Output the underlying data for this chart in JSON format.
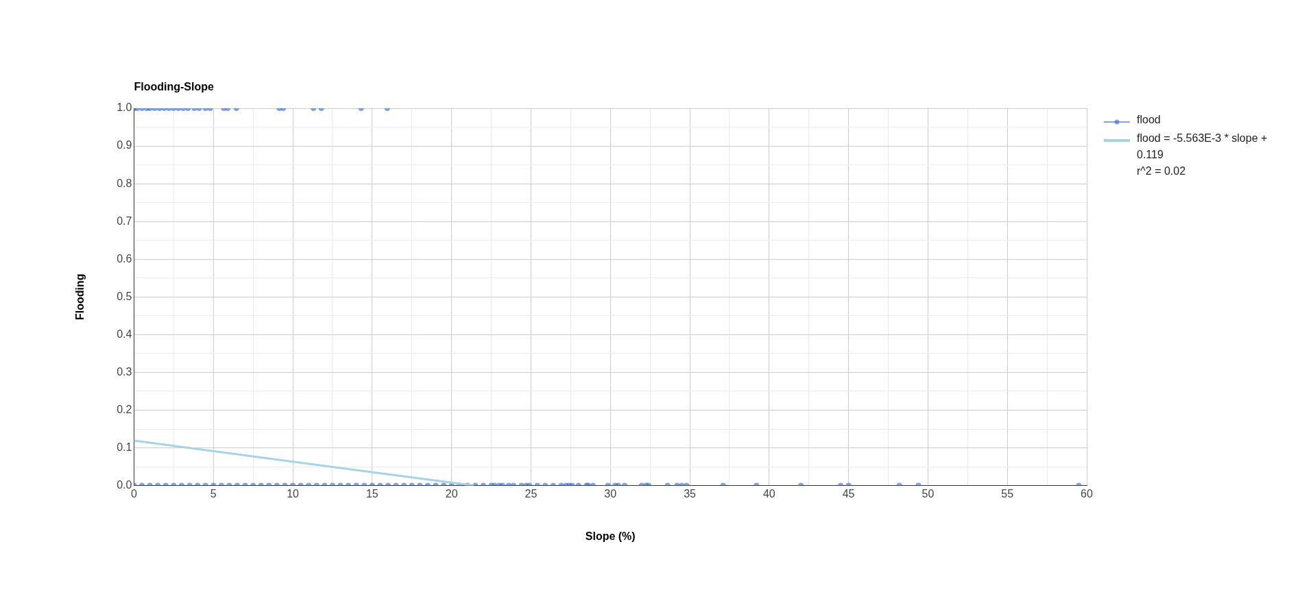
{
  "chart_data": {
    "type": "scatter",
    "title": "Flooding-Slope",
    "xlabel": "Slope (%)",
    "ylabel": "Flooding",
    "xlim": [
      0,
      60
    ],
    "ylim": [
      0,
      1
    ],
    "xticks": [
      0,
      {
        "value": 2.5,
        "label": null
      },
      5,
      {
        "value": 7.5,
        "label": null
      },
      10,
      {
        "value": 12.5,
        "label": null
      },
      15,
      {
        "value": 17.5,
        "label": null
      },
      20,
      {
        "value": 22.5,
        "label": null
      },
      25,
      {
        "value": 27.5,
        "label": null
      },
      30,
      {
        "value": 32.5,
        "label": null
      },
      35,
      {
        "value": 37.5,
        "label": null
      },
      40,
      {
        "value": 42.5,
        "label": null
      },
      45,
      {
        "value": 47.5,
        "label": null
      },
      50,
      {
        "value": 52.5,
        "label": null
      },
      55,
      {
        "value": 57.5,
        "label": null
      },
      60
    ],
    "yticks": [
      {
        "value": 0,
        "label": "0.0"
      },
      {
        "value": 0.05,
        "label": null
      },
      0.1,
      {
        "value": 0.15,
        "label": null
      },
      0.2,
      {
        "value": 0.25,
        "label": null
      },
      0.3,
      {
        "value": 0.35,
        "label": null
      },
      0.4,
      {
        "value": 0.45,
        "label": null
      },
      0.5,
      {
        "value": 0.55,
        "label": null
      },
      0.6,
      {
        "value": 0.65,
        "label": null
      },
      0.7,
      {
        "value": 0.75,
        "label": null
      },
      0.8,
      {
        "value": 0.85,
        "label": null
      },
      0.9,
      {
        "value": 0.95,
        "label": null
      },
      {
        "value": 1,
        "label": "1.0"
      }
    ],
    "grid": true,
    "legend": "right",
    "series": [
      {
        "name": "flood",
        "marker": "circle",
        "color": "#3366cc",
        "x": [
          0,
          0.2,
          0.5,
          0.8,
          1.0,
          1.3,
          1.6,
          1.9,
          2.2,
          2.5,
          2.8,
          3.1,
          3.4,
          3.8,
          4.1,
          4.5,
          4.8,
          5.65,
          5.9,
          6.45,
          9.15,
          9.4,
          11.3,
          11.8,
          14.3,
          15.95,
          0,
          0.5,
          1,
          1.5,
          2,
          2.5,
          3,
          3.5,
          4,
          4.5,
          5,
          5.5,
          6,
          6.5,
          7,
          7.5,
          8,
          8.5,
          9,
          9.5,
          10,
          10.5,
          11,
          11.5,
          12,
          12.5,
          13,
          13.5,
          14,
          14.5,
          15,
          15.5,
          16,
          16.5,
          17,
          17.5,
          18,
          18.5,
          19,
          19.5,
          20,
          20.5,
          21,
          21.5,
          22,
          22.5,
          22.7,
          23.0,
          23.2,
          23.6,
          23.9,
          24.4,
          24.7,
          24.9,
          25.4,
          25.9,
          26.4,
          26.9,
          27.2,
          27.4,
          27.6,
          28.0,
          28.5,
          28.6,
          28.9,
          29.85,
          30.3,
          30.5,
          30.9,
          31.97,
          32.25,
          32.4,
          33.6,
          34.2,
          34.5,
          34.8,
          37.1,
          39.2,
          42.0,
          44.5,
          45.0,
          48.2,
          49.4,
          59.5
        ],
        "values": [
          1,
          1,
          1,
          1,
          1,
          1,
          1,
          1,
          1,
          1,
          1,
          1,
          1,
          1,
          1,
          1,
          1,
          1,
          1,
          1,
          1,
          1,
          1,
          1,
          1,
          1,
          0,
          0,
          0,
          0,
          0,
          0,
          0,
          0,
          0,
          0,
          0,
          0,
          0,
          0,
          0,
          0,
          0,
          0,
          0,
          0,
          0,
          0,
          0,
          0,
          0,
          0,
          0,
          0,
          0,
          0,
          0,
          0,
          0,
          0,
          0,
          0,
          0,
          0,
          0,
          0,
          0,
          0,
          0,
          0,
          0,
          0,
          0,
          0,
          0,
          0,
          0,
          0,
          0,
          0,
          0,
          0,
          0,
          0,
          0,
          0,
          0,
          0,
          0,
          0,
          0,
          0,
          0,
          0,
          0,
          0,
          0,
          0,
          0,
          0,
          0,
          0,
          0,
          0,
          0,
          0,
          0,
          0,
          0,
          0
        ]
      },
      {
        "name": "flood = -5.563E-3 * slope + 0.119\nr^2 = 0.02",
        "type": "line",
        "marker": "none",
        "color": "#a6d4e4",
        "x": [
          0,
          21.39
        ],
        "values": [
          0.119,
          0
        ]
      }
    ]
  }
}
